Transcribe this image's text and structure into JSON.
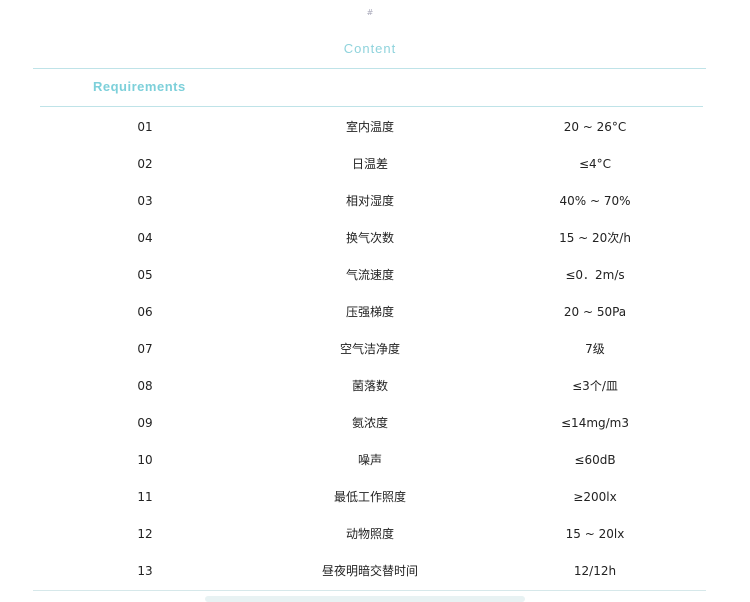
{
  "header": {
    "mark": "#",
    "title": "Content",
    "section": "Requirements"
  },
  "rows": [
    {
      "no": "01",
      "item": "室内温度",
      "value": "20 ~ 26°C"
    },
    {
      "no": "02",
      "item": "日温差",
      "value": "≤4°C"
    },
    {
      "no": "03",
      "item": "相对湿度",
      "value": "40% ~ 70%"
    },
    {
      "no": "04",
      "item": "换气次数",
      "value": "15 ~ 20次/h"
    },
    {
      "no": "05",
      "item": "气流速度",
      "value": "≤0．2m/s"
    },
    {
      "no": "06",
      "item": "压强梯度",
      "value": "20 ~ 50Pa"
    },
    {
      "no": "07",
      "item": "空气洁净度",
      "value": "7级"
    },
    {
      "no": "08",
      "item": "菌落数",
      "value": "≤3个/皿"
    },
    {
      "no": "09",
      "item": "氨浓度",
      "value": "≤14mg/m3"
    },
    {
      "no": "10",
      "item": "噪声",
      "value": "≤60dB"
    },
    {
      "no": "11",
      "item": "最低工作照度",
      "value": "≥200lx"
    },
    {
      "no": "12",
      "item": "动物照度",
      "value": "15 ~ 20lx"
    },
    {
      "no": "13",
      "item": "昼夜明暗交替时间",
      "value": "12/12h"
    }
  ]
}
